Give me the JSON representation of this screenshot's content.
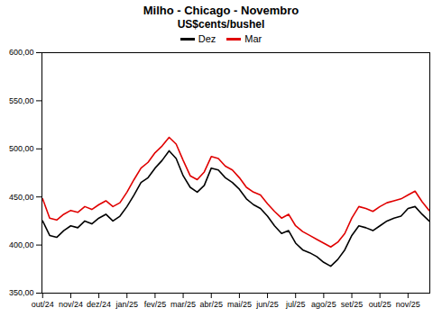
{
  "chart_data": {
    "type": "line",
    "title": "Milho - Chicago - Novembro",
    "subtitle": "US$cents/bushel",
    "legend": "top",
    "categories": [
      "out/24",
      null,
      null,
      null,
      "nov/24",
      null,
      null,
      null,
      "dez/24",
      null,
      null,
      null,
      "jan/25",
      null,
      null,
      null,
      "fev/25",
      null,
      null,
      null,
      "mar/25",
      null,
      null,
      null,
      "abr/25",
      null,
      null,
      null,
      "mai/25",
      null,
      null,
      null,
      "jun/25",
      null,
      null,
      null,
      "jul/25",
      null,
      null,
      null,
      "ago/25",
      null,
      null,
      null,
      "set/25",
      null,
      null,
      null,
      "out/25",
      null,
      null,
      null,
      "nov/25",
      null,
      null,
      null
    ],
    "series": [
      {
        "name": "Dez",
        "color": "#000000",
        "values": [
          425,
          410,
          408,
          415,
          420,
          418,
          425,
          422,
          428,
          432,
          425,
          430,
          440,
          452,
          465,
          470,
          480,
          488,
          498,
          490,
          472,
          460,
          455,
          462,
          480,
          478,
          470,
          465,
          458,
          448,
          442,
          438,
          430,
          420,
          412,
          415,
          402,
          395,
          392,
          388,
          382,
          378,
          385,
          395,
          410,
          420,
          418,
          415,
          420,
          425,
          428,
          430,
          438,
          440,
          432,
          425
        ]
      },
      {
        "name": "Mar",
        "color": "#e00000",
        "values": [
          448,
          428,
          426,
          432,
          436,
          434,
          440,
          437,
          442,
          446,
          440,
          444,
          455,
          468,
          480,
          486,
          496,
          503,
          512,
          505,
          488,
          472,
          468,
          476,
          492,
          490,
          482,
          478,
          470,
          460,
          455,
          452,
          443,
          435,
          428,
          432,
          420,
          414,
          410,
          406,
          402,
          398,
          403,
          412,
          428,
          440,
          438,
          435,
          440,
          444,
          446,
          448,
          452,
          456,
          445,
          436
        ]
      }
    ],
    "ylim": [
      350,
      600
    ],
    "yticks": [
      {
        "value": 350,
        "label": "350,00"
      },
      {
        "value": 400,
        "label": "400,00"
      },
      {
        "value": 450,
        "label": "450,00"
      },
      {
        "value": 500,
        "label": "500,00"
      },
      {
        "value": 550,
        "label": "550,00"
      },
      {
        "value": 600,
        "label": "600,00"
      }
    ],
    "grid": false
  }
}
